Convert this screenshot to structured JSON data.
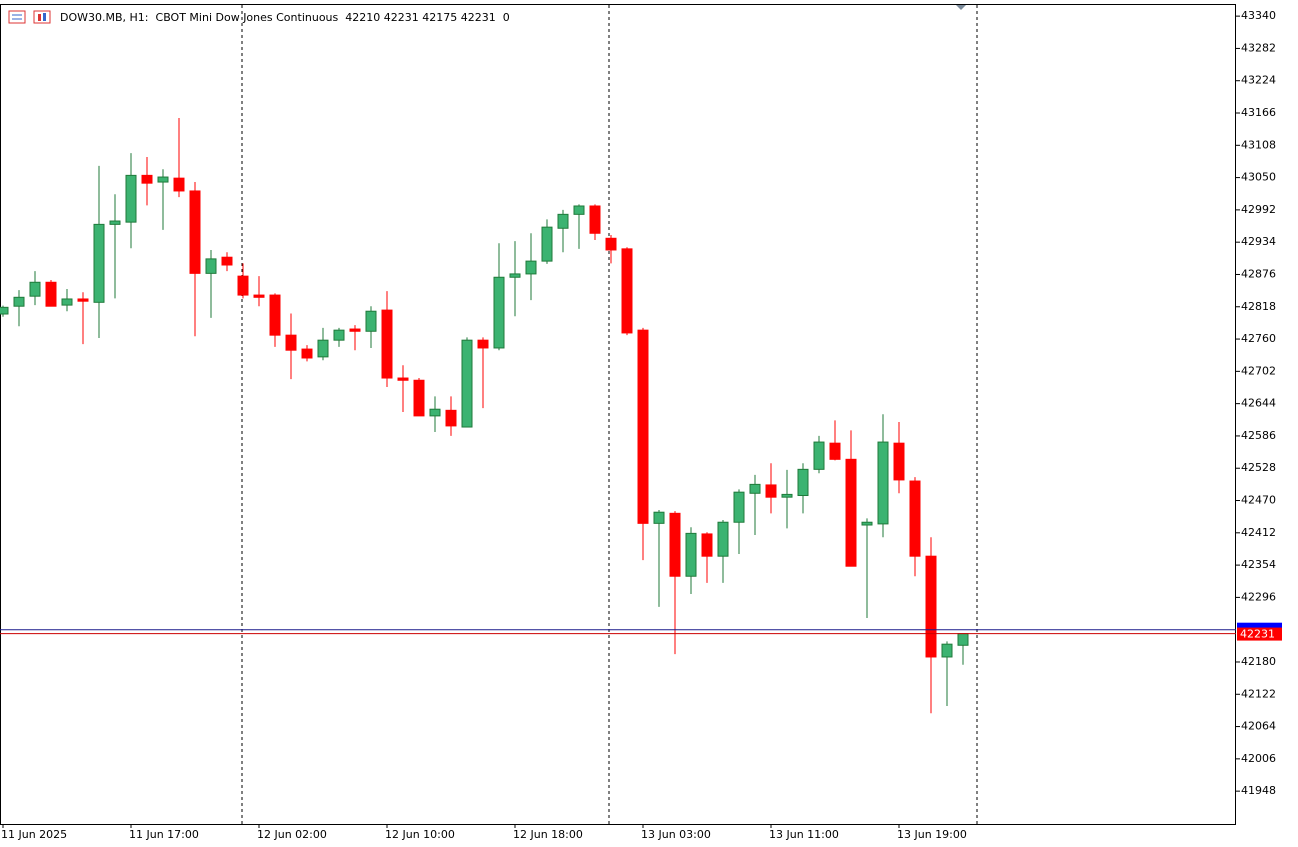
{
  "chart_data": {
    "type": "candlestick",
    "title": "DOW30.MB, H1:",
    "subtitle": "CBOT Mini Dow Jones Continuous",
    "header_ohlc": [
      42210,
      42231,
      42175,
      42231
    ],
    "header_spread": 0,
    "categories": [
      "11 Jun 2025",
      null,
      null,
      null,
      null,
      null,
      null,
      null,
      "11 Jun 17:00",
      null,
      null,
      null,
      null,
      null,
      null,
      null,
      "12 Jun 02:00",
      null,
      null,
      null,
      null,
      null,
      null,
      null,
      "12 Jun 10:00",
      null,
      null,
      null,
      null,
      null,
      null,
      null,
      "12 Jun 18:00",
      null,
      null,
      null,
      null,
      null,
      null,
      null,
      "13 Jun 03:00",
      null,
      null,
      null,
      null,
      null,
      null,
      null,
      "13 Jun 11:00",
      null,
      null,
      null,
      null,
      null,
      null,
      null,
      "13 Jun 19:00",
      null,
      null,
      null,
      null
    ],
    "open": [
      42805,
      42819,
      42837,
      42862,
      42821,
      42832,
      42826,
      42966,
      42970,
      43054,
      43042,
      43049,
      43026,
      42878,
      42907,
      42873,
      42839,
      42839,
      42767,
      42742,
      42728,
      42758,
      42778,
      42774,
      42812,
      42690,
      42686,
      42622,
      42632,
      42602,
      42758,
      42744,
      42871,
      42877,
      42900,
      42959,
      42984,
      42999,
      42941,
      42922,
      42776,
      42429,
      42447,
      42334,
      42410,
      42370,
      42431,
      42483,
      42498,
      42476,
      42479,
      42526,
      42573,
      42544,
      42426,
      42428,
      42573,
      42505,
      42370,
      42189,
      42210
    ],
    "high": [
      42820,
      42848,
      42882,
      42866,
      42850,
      42844,
      43071,
      43020,
      43094,
      43087,
      43065,
      43157,
      43042,
      42920,
      42916,
      42896,
      42873,
      42842,
      42806,
      42749,
      42780,
      42780,
      42785,
      42819,
      42846,
      42713,
      42690,
      42657,
      42657,
      42763,
      42763,
      42932,
      42936,
      42950,
      42975,
      42992,
      43002,
      43002,
      42947,
      42925,
      42780,
      42453,
      42451,
      42422,
      42413,
      42435,
      42490,
      42516,
      42537,
      42525,
      42537,
      42586,
      42614,
      42596,
      42438,
      42625,
      42611,
      42512,
      42404,
      42217,
      42231
    ],
    "low": [
      42800,
      42783,
      42821,
      42819,
      42810,
      42751,
      42762,
      42833,
      42923,
      43000,
      42956,
      43015,
      42765,
      42798,
      42882,
      42833,
      42819,
      42746,
      42688,
      42720,
      42722,
      42746,
      42740,
      42744,
      42674,
      42629,
      42622,
      42593,
      42586,
      42602,
      42636,
      42740,
      42801,
      42830,
      42895,
      42916,
      42922,
      42938,
      42896,
      42767,
      42363,
      42279,
      42194,
      42302,
      42322,
      42322,
      42374,
      42408,
      42447,
      42420,
      42447,
      42519,
      42542,
      42352,
      42259,
      42404,
      42483,
      42334,
      42088,
      42101,
      42175
    ],
    "close": [
      42817,
      42835,
      42862,
      42819,
      42832,
      42828,
      42966,
      42972,
      43054,
      43040,
      43051,
      43026,
      42878,
      42904,
      42893,
      42839,
      42835,
      42767,
      42740,
      42726,
      42758,
      42776,
      42774,
      42810,
      42690,
      42686,
      42622,
      42634,
      42604,
      42758,
      42744,
      42871,
      42877,
      42900,
      42961,
      42984,
      42999,
      42950,
      42920,
      42771,
      42429,
      42449,
      42334,
      42411,
      42370,
      42431,
      42485,
      42499,
      42476,
      42481,
      42526,
      42575,
      42544,
      42352,
      42431,
      42575,
      42507,
      42370,
      42189,
      42212,
      42231
    ],
    "up_color": "#3cb371",
    "down_color": "#ff0000",
    "ylim": [
      41889,
      43360
    ],
    "yticks": [
      43340,
      43282,
      43224,
      43166,
      43108,
      43050,
      42992,
      42934,
      42876,
      42818,
      42760,
      42702,
      42644,
      42586,
      42528,
      42470,
      42412,
      42354,
      42296,
      42180,
      42122,
      42064,
      42006,
      41948
    ],
    "bid_line": 42231,
    "ask_line": 42238
  }
}
